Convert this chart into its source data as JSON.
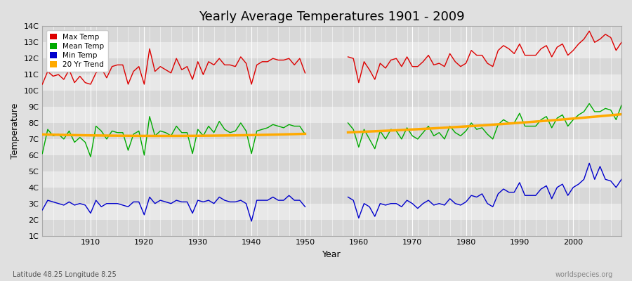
{
  "title": "Yearly Average Temperatures 1901 - 2009",
  "xlabel": "Year",
  "ylabel": "Temperature",
  "subtitle_lat_lon": "Latitude 48.25 Longitude 8.25",
  "watermark": "worldspecies.org",
  "ylim": [
    1,
    14
  ],
  "ytick_labels": [
    "1C",
    "2C",
    "3C",
    "4C",
    "5C",
    "6C",
    "7C",
    "8C",
    "9C",
    "10C",
    "11C",
    "12C",
    "13C",
    "14C"
  ],
  "ytick_values": [
    1,
    2,
    3,
    4,
    5,
    6,
    7,
    8,
    9,
    10,
    11,
    12,
    13,
    14
  ],
  "legend": [
    "Max Temp",
    "Mean Temp",
    "Min Temp",
    "20 Yr Trend"
  ],
  "line_colors": [
    "#dd0000",
    "#00aa00",
    "#0000cc",
    "#ffaa00"
  ],
  "bg_color": "#e0e0e0",
  "band_colors": [
    "#d8d8d8",
    "#e8e8e8"
  ],
  "grid_color": "#ffffff",
  "title_fontsize": 13,
  "figsize": [
    9.0,
    4.0
  ],
  "dpi": 100,
  "xlim": [
    1901,
    2009
  ],
  "xticks": [
    1910,
    1920,
    1930,
    1940,
    1950,
    1960,
    1970,
    1980,
    1990,
    2000
  ],
  "years_seg1": [
    1901,
    1902,
    1903,
    1904,
    1905,
    1906,
    1907,
    1908,
    1909,
    1910,
    1911,
    1912,
    1913,
    1914,
    1915,
    1916,
    1917,
    1918,
    1919,
    1920,
    1921,
    1922,
    1923,
    1924,
    1925,
    1926,
    1927,
    1928,
    1929,
    1930,
    1931,
    1932,
    1933,
    1934,
    1935,
    1936,
    1937,
    1938,
    1939,
    1940,
    1941,
    1942,
    1943,
    1944,
    1945,
    1946,
    1947,
    1948,
    1949,
    1950
  ],
  "years_seg2": [
    1958,
    1959,
    1960,
    1961,
    1962,
    1963,
    1964,
    1965,
    1966,
    1967,
    1968,
    1969,
    1970,
    1971,
    1972,
    1973,
    1974,
    1975,
    1976,
    1977,
    1978,
    1979,
    1980,
    1981,
    1982,
    1983,
    1984,
    1985,
    1986,
    1987,
    1988,
    1989,
    1990,
    1991,
    1992,
    1993,
    1994,
    1995,
    1996,
    1997,
    1998,
    1999,
    2000,
    2001,
    2002,
    2003,
    2004,
    2005,
    2006,
    2007,
    2008,
    2009
  ],
  "max_temp_seg1": [
    10.4,
    11.2,
    10.9,
    11.0,
    10.7,
    11.3,
    10.5,
    10.9,
    10.5,
    10.4,
    11.1,
    11.4,
    10.8,
    11.5,
    11.6,
    11.6,
    10.4,
    11.2,
    11.5,
    10.4,
    12.6,
    11.2,
    11.5,
    11.3,
    11.1,
    12.0,
    11.3,
    11.5,
    10.7,
    11.8,
    11.0,
    11.8,
    11.6,
    12.0,
    11.6,
    11.6,
    11.5,
    12.1,
    11.7,
    10.4,
    11.6,
    11.8,
    11.8,
    12.0,
    11.9,
    11.9,
    12.0,
    11.6,
    12.0,
    11.1
  ],
  "max_temp_seg2": [
    12.1,
    12.0,
    10.5,
    11.8,
    11.3,
    10.7,
    11.7,
    11.4,
    11.9,
    12.0,
    11.5,
    12.1,
    11.5,
    11.5,
    11.8,
    12.2,
    11.6,
    11.7,
    11.5,
    12.3,
    11.8,
    11.5,
    11.7,
    12.5,
    12.2,
    12.2,
    11.7,
    11.5,
    12.5,
    12.8,
    12.6,
    12.3,
    12.9,
    12.2,
    12.2,
    12.2,
    12.6,
    12.8,
    12.1,
    12.7,
    12.9,
    12.2,
    12.5,
    12.9,
    13.2,
    13.7,
    13.0,
    13.2,
    13.5,
    13.3,
    12.5,
    13.0
  ],
  "mean_temp_seg1": [
    6.1,
    7.6,
    7.2,
    7.3,
    7.0,
    7.5,
    6.8,
    7.1,
    6.8,
    5.9,
    7.8,
    7.5,
    7.0,
    7.5,
    7.4,
    7.4,
    6.3,
    7.3,
    7.5,
    6.0,
    8.4,
    7.2,
    7.5,
    7.4,
    7.2,
    7.8,
    7.4,
    7.4,
    6.1,
    7.6,
    7.2,
    7.8,
    7.4,
    8.1,
    7.6,
    7.4,
    7.5,
    8.0,
    7.5,
    6.1,
    7.5,
    7.6,
    7.7,
    7.9,
    7.8,
    7.7,
    7.9,
    7.8,
    7.8,
    7.3
  ],
  "mean_temp_seg2": [
    8.0,
    7.6,
    6.5,
    7.6,
    7.0,
    6.4,
    7.5,
    7.0,
    7.6,
    7.5,
    7.0,
    7.7,
    7.2,
    7.0,
    7.4,
    7.8,
    7.2,
    7.4,
    7.0,
    7.8,
    7.4,
    7.2,
    7.5,
    8.0,
    7.6,
    7.7,
    7.3,
    7.0,
    7.9,
    8.2,
    8.0,
    8.0,
    8.6,
    7.8,
    7.8,
    7.8,
    8.2,
    8.4,
    7.7,
    8.3,
    8.5,
    7.8,
    8.2,
    8.5,
    8.7,
    9.2,
    8.7,
    8.7,
    8.9,
    8.8,
    8.2,
    9.1
  ],
  "min_temp_seg1": [
    2.6,
    3.2,
    3.1,
    3.0,
    2.9,
    3.1,
    2.9,
    3.0,
    2.9,
    2.4,
    3.2,
    2.8,
    3.0,
    3.0,
    3.0,
    2.9,
    2.8,
    3.1,
    3.1,
    2.3,
    3.4,
    3.0,
    3.2,
    3.1,
    3.0,
    3.2,
    3.1,
    3.1,
    2.4,
    3.2,
    3.1,
    3.2,
    3.0,
    3.4,
    3.2,
    3.1,
    3.1,
    3.2,
    3.0,
    1.9,
    3.2,
    3.2,
    3.2,
    3.4,
    3.2,
    3.2,
    3.5,
    3.2,
    3.2,
    2.8
  ],
  "min_temp_seg2": [
    3.4,
    3.2,
    2.1,
    3.0,
    2.8,
    2.2,
    3.0,
    2.9,
    3.0,
    3.0,
    2.8,
    3.2,
    3.0,
    2.7,
    3.0,
    3.2,
    2.9,
    3.0,
    2.9,
    3.3,
    3.0,
    2.9,
    3.1,
    3.5,
    3.4,
    3.6,
    3.0,
    2.8,
    3.6,
    3.9,
    3.7,
    3.7,
    4.3,
    3.5,
    3.5,
    3.5,
    3.9,
    4.1,
    3.3,
    4.0,
    4.2,
    3.5,
    4.0,
    4.2,
    4.5,
    5.5,
    4.5,
    5.3,
    4.5,
    4.4,
    4.0,
    4.5
  ]
}
